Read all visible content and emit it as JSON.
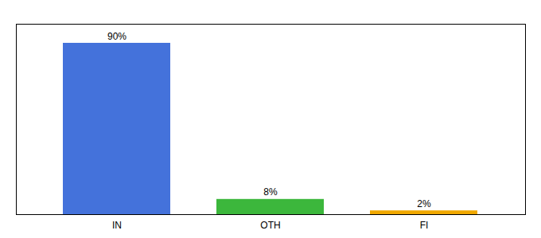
{
  "chart_data": {
    "type": "bar",
    "categories": [
      "IN",
      "OTH",
      "FI"
    ],
    "values": [
      90,
      8,
      2
    ],
    "colors": [
      "#4472db",
      "#3cb73c",
      "#f0a800"
    ],
    "value_labels": [
      "90%",
      "8%",
      "2%"
    ],
    "data_labels": true,
    "ylim": [
      0,
      100
    ],
    "tick_labels": "x",
    "grid": false
  }
}
